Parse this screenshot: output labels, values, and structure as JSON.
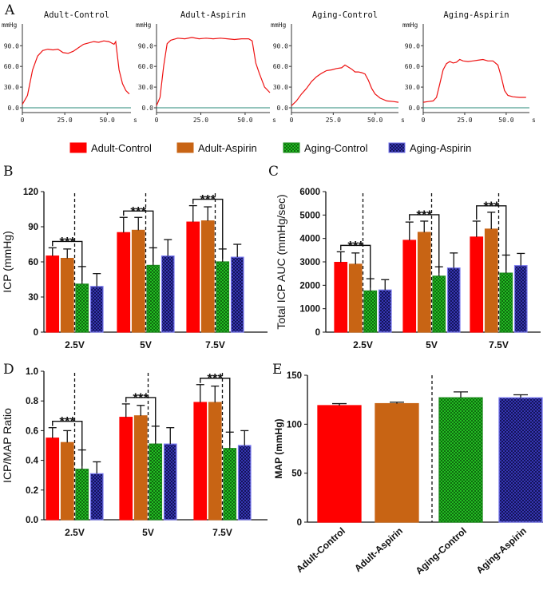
{
  "panel_letters": [
    "A",
    "B",
    "C",
    "D",
    "E"
  ],
  "colors": {
    "adult_control": "#ff0000",
    "adult_aspirin": "#c86414",
    "aging_control": "#22bb22",
    "aging_aspirin": "#3030a8",
    "aging_aspirin_edge": "#7777ee",
    "trace": "#ee1111",
    "baseline": "#2a8a7a"
  },
  "legend": {
    "items": [
      {
        "label": "Adult-Control",
        "color": "#ff0000",
        "pattern": "solid"
      },
      {
        "label": "Adult-Aspirin",
        "color": "#c86414",
        "pattern": "solid"
      },
      {
        "label": "Aging-Control",
        "color": "#22bb22",
        "pattern": "checker"
      },
      {
        "label": "Aging-Aspirin",
        "color": "#3030a8",
        "pattern": "checker"
      }
    ]
  },
  "panel_a": {
    "unit_label": "mmHg",
    "time_unit": "s",
    "y_ticks": [
      "0.0",
      "30.0",
      "60.0",
      "90.0"
    ],
    "x_ticks": [
      "0",
      "25.0",
      "50.0"
    ],
    "traces": [
      {
        "title": "Adult-Control",
        "points": [
          [
            0,
            5
          ],
          [
            3,
            18
          ],
          [
            6,
            55
          ],
          [
            9,
            75
          ],
          [
            12,
            83
          ],
          [
            15,
            85
          ],
          [
            18,
            84
          ],
          [
            21,
            85
          ],
          [
            24,
            80
          ],
          [
            27,
            79
          ],
          [
            30,
            82
          ],
          [
            33,
            87
          ],
          [
            36,
            92
          ],
          [
            39,
            94
          ],
          [
            42,
            96
          ],
          [
            45,
            95
          ],
          [
            48,
            97
          ],
          [
            51,
            96
          ],
          [
            54,
            92
          ],
          [
            55,
            96
          ],
          [
            57,
            55
          ],
          [
            59,
            35
          ],
          [
            61,
            25
          ],
          [
            63,
            20
          ]
        ]
      },
      {
        "title": "Adult-Aspirin",
        "points": [
          [
            0,
            3
          ],
          [
            2,
            15
          ],
          [
            4,
            60
          ],
          [
            6,
            93
          ],
          [
            8,
            98
          ],
          [
            12,
            101
          ],
          [
            16,
            100
          ],
          [
            20,
            102
          ],
          [
            24,
            100
          ],
          [
            28,
            101
          ],
          [
            32,
            100
          ],
          [
            36,
            101
          ],
          [
            40,
            100
          ],
          [
            44,
            99
          ],
          [
            48,
            100
          ],
          [
            52,
            100
          ],
          [
            54,
            97
          ],
          [
            56,
            65
          ],
          [
            58,
            50
          ],
          [
            61,
            30
          ],
          [
            64,
            22
          ]
        ]
      },
      {
        "title": "Aging-Control",
        "points": [
          [
            0,
            3
          ],
          [
            3,
            10
          ],
          [
            6,
            20
          ],
          [
            9,
            28
          ],
          [
            12,
            38
          ],
          [
            15,
            45
          ],
          [
            18,
            50
          ],
          [
            21,
            54
          ],
          [
            24,
            55
          ],
          [
            27,
            57
          ],
          [
            30,
            58
          ],
          [
            32,
            62
          ],
          [
            34,
            59
          ],
          [
            36,
            56
          ],
          [
            38,
            52
          ],
          [
            40,
            52
          ],
          [
            42,
            51
          ],
          [
            44,
            49
          ],
          [
            46,
            40
          ],
          [
            48,
            28
          ],
          [
            50,
            20
          ],
          [
            53,
            14
          ],
          [
            57,
            10
          ],
          [
            61,
            9
          ],
          [
            64,
            8
          ]
        ]
      },
      {
        "title": "Aging-Aspirin",
        "points": [
          [
            0,
            8
          ],
          [
            3,
            9
          ],
          [
            6,
            10
          ],
          [
            8,
            15
          ],
          [
            10,
            35
          ],
          [
            12,
            55
          ],
          [
            14,
            64
          ],
          [
            16,
            67
          ],
          [
            18,
            65
          ],
          [
            20,
            66
          ],
          [
            22,
            70
          ],
          [
            24,
            68
          ],
          [
            27,
            67
          ],
          [
            30,
            68
          ],
          [
            33,
            69
          ],
          [
            36,
            70
          ],
          [
            39,
            68
          ],
          [
            42,
            68
          ],
          [
            45,
            62
          ],
          [
            47,
            45
          ],
          [
            49,
            25
          ],
          [
            51,
            18
          ],
          [
            54,
            16
          ],
          [
            58,
            15
          ],
          [
            62,
            15
          ]
        ]
      }
    ]
  },
  "chart_data": [
    {
      "panel": "B",
      "type": "bar",
      "title": "",
      "xlabel": "",
      "ylabel": "ICP (mmHg)",
      "ylim": [
        0,
        120
      ],
      "yticks": [
        "0",
        "30",
        "60",
        "90",
        "120"
      ],
      "categories": [
        "2.5V",
        "5V",
        "7.5V"
      ],
      "series": [
        {
          "name": "Adult-Control",
          "values": [
            65,
            85,
            94
          ],
          "errors": [
            7,
            13,
            14
          ]
        },
        {
          "name": "Adult-Aspirin",
          "values": [
            63,
            87,
            95
          ],
          "errors": [
            8,
            11,
            12
          ]
        },
        {
          "name": "Aging-Control",
          "values": [
            41,
            57,
            60
          ],
          "errors": [
            15,
            15,
            11
          ]
        },
        {
          "name": "Aging-Aspirin",
          "values": [
            39,
            65,
            64
          ],
          "errors": [
            11,
            14,
            11
          ]
        }
      ],
      "significance": "***"
    },
    {
      "panel": "C",
      "type": "bar",
      "title": "",
      "xlabel": "",
      "ylabel": "Total ICP AUC (mmHg/sec)",
      "ylim": [
        0,
        6000
      ],
      "yticks": [
        "0",
        "1000",
        "2000",
        "3000",
        "4000",
        "5000",
        "6000"
      ],
      "categories": [
        "2.5V",
        "5V",
        "7.5V"
      ],
      "series": [
        {
          "name": "Adult-Control",
          "values": [
            2980,
            3920,
            4060
          ],
          "errors": [
            450,
            780,
            680
          ]
        },
        {
          "name": "Adult-Aspirin",
          "values": [
            2900,
            4260,
            4400
          ],
          "errors": [
            480,
            480,
            720
          ]
        },
        {
          "name": "Aging-Control",
          "values": [
            1760,
            2390,
            2520
          ],
          "errors": [
            520,
            400,
            770
          ]
        },
        {
          "name": "Aging-Aspirin",
          "values": [
            1800,
            2740,
            2840
          ],
          "errors": [
            440,
            640,
            520
          ]
        }
      ],
      "significance": "***"
    },
    {
      "panel": "D",
      "type": "bar",
      "title": "",
      "xlabel": "",
      "ylabel": "ICP/MAP Ratio",
      "ylim": [
        0,
        1.0
      ],
      "yticks": [
        "0.0",
        "0.2",
        "0.4",
        "0.6",
        "0.8",
        "1.0"
      ],
      "categories": [
        "2.5V",
        "5V",
        "7.5V"
      ],
      "series": [
        {
          "name": "Adult-Control",
          "values": [
            0.55,
            0.69,
            0.79
          ],
          "errors": [
            0.07,
            0.09,
            0.12
          ]
        },
        {
          "name": "Adult-Aspirin",
          "values": [
            0.52,
            0.7,
            0.79
          ],
          "errors": [
            0.08,
            0.07,
            0.11
          ]
        },
        {
          "name": "Aging-Control",
          "values": [
            0.34,
            0.51,
            0.48
          ],
          "errors": [
            0.13,
            0.12,
            0.11
          ]
        },
        {
          "name": "Aging-Aspirin",
          "values": [
            0.31,
            0.51,
            0.5
          ],
          "errors": [
            0.08,
            0.11,
            0.1
          ]
        }
      ],
      "significance": "***"
    },
    {
      "panel": "E",
      "type": "bar",
      "title": "",
      "xlabel": "",
      "ylabel": "MAP (mmHg)",
      "ylim": [
        0,
        150
      ],
      "yticks": [
        "0",
        "50",
        "100",
        "150"
      ],
      "categories": [
        "Adult-Control",
        "Adult-Aspirin",
        "Aging-Control",
        "Aging-Aspirin"
      ],
      "values": [
        119,
        121,
        127,
        127
      ],
      "errors": [
        2,
        1.5,
        6,
        3
      ]
    }
  ]
}
